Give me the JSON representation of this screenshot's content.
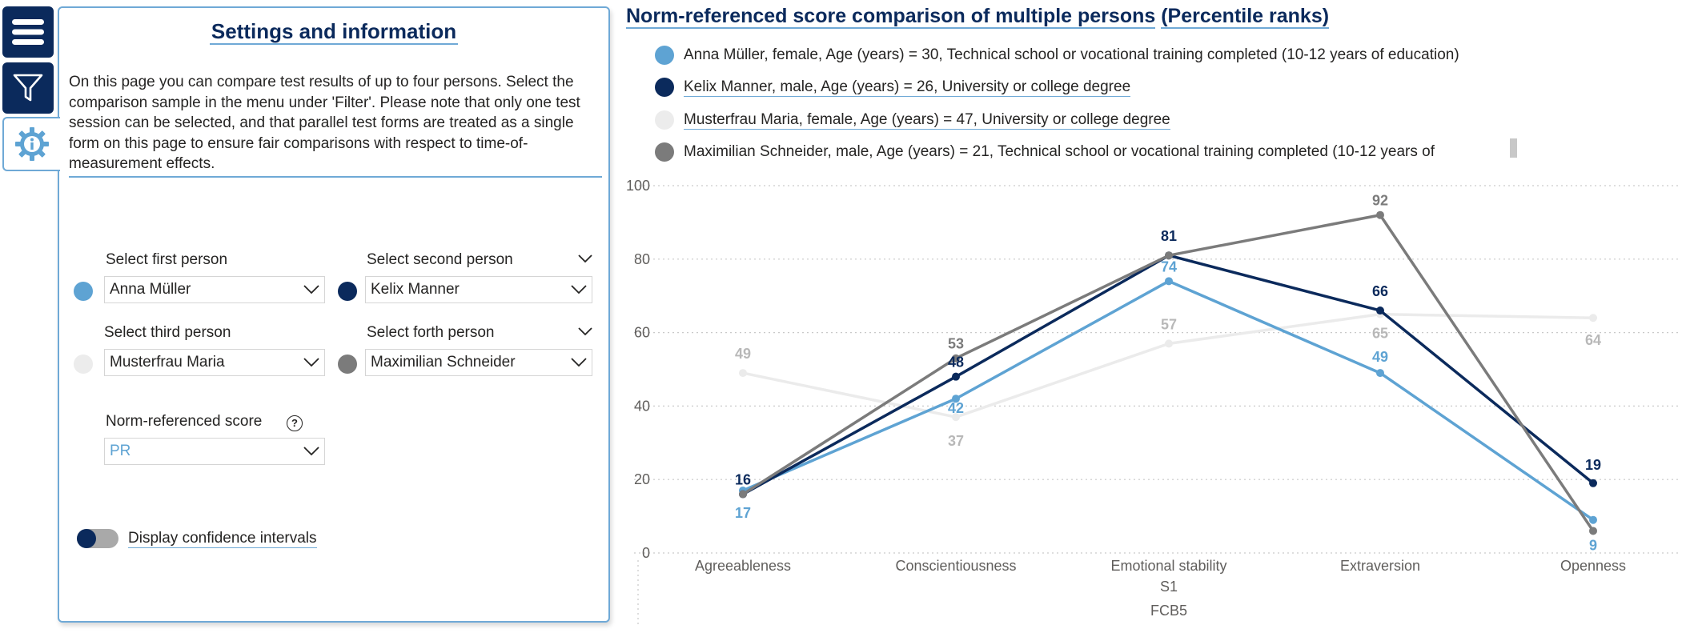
{
  "nav": {
    "menu_icon": "hamburger-menu-icon",
    "filter_icon": "filter-funnel-icon",
    "info_icon": "info-gear-icon"
  },
  "panel": {
    "title": "Settings and information",
    "intro": "On this page you can compare test results of up to four persons. Select the comparison sample in the menu under 'Filter'. Please note that only one test session can be selected, and that parallel test forms are treated as a single form on this page to ensure fair comparisons with respect to time-of-measurement effects.",
    "first_label": "Select first person",
    "first_value": "Anna Müller",
    "second_label": "Select second person",
    "second_value": "Kelix Manner",
    "third_label": "Select third person",
    "third_value": "Musterfrau Maria",
    "fourth_label": "Select forth person",
    "fourth_value": "Maximilian Schneider",
    "norm_label": "Norm-referenced score",
    "norm_help": "?",
    "norm_value": "PR",
    "toggle_label": "Display confidence intervals"
  },
  "colors": {
    "anna": "#5ea3d3",
    "kelix": "#0b2a5c",
    "maria": "#ececec",
    "max": "#7b7b7b",
    "accent": "#6fa9d6"
  },
  "chart": {
    "title": "Norm-referenced score comparison of multiple persons",
    "title_suffix": "(Percentile ranks)",
    "legend": [
      "Anna Müller, female, Age (years) = 30, Technical school or vocational training completed (10-12 years of education)",
      "Kelix Manner, male, Age (years) = 26, University or college degree",
      "Musterfrau Maria, female, Age (years) = 47, University or college degree",
      "Maximilian Schneider, male, Age (years) = 21, Technical school or vocational training completed (10-12 years of"
    ],
    "x_sub1": "S1",
    "x_sub2": "FCB5"
  },
  "chart_data": {
    "type": "line",
    "title": "Norm-referenced score comparison of multiple persons (Percentile ranks)",
    "categories": [
      "Agreeableness",
      "Conscientiousness",
      "Emotional stability",
      "Extraversion",
      "Openness"
    ],
    "ylim": [
      0,
      100
    ],
    "yticks": [
      0,
      20,
      40,
      60,
      80,
      100
    ],
    "xlabel": "S1 / FCB5",
    "ylabel": "",
    "series": [
      {
        "name": "Musterfrau Maria",
        "color": "#ebebeb",
        "label_color": "#b8b8b8",
        "values": [
          49,
          37,
          57,
          65,
          64
        ]
      },
      {
        "name": "Anna Müller",
        "color": "#5ea3d3",
        "label_color": "#5ea3d3",
        "values": [
          17,
          42,
          74,
          49,
          9
        ]
      },
      {
        "name": "Kelix Manner",
        "color": "#0b2a5c",
        "label_color": "#0b2a5c",
        "values": [
          16,
          48,
          81,
          66,
          19
        ]
      },
      {
        "name": "Maximilian Schneider",
        "color": "#7b7b7b",
        "label_color": "#7b7b7b",
        "values": [
          16,
          53,
          81,
          92,
          6
        ]
      }
    ]
  }
}
